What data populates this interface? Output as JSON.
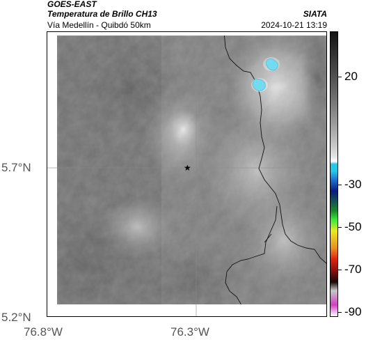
{
  "header": {
    "source": "GOES-EAST",
    "product": "Temperatura de Brillo CH13",
    "brand": "SIATA",
    "region": "Vía Medellín - Quibdó 50km",
    "timestamp": "2024-10-21 13:19"
  },
  "axes": {
    "y_labels": [
      "5.7°N",
      "5.2°N"
    ],
    "x_labels": [
      "76.8°W",
      "76.3°W"
    ]
  },
  "colorbar": {
    "labels": [
      "20",
      "-30",
      "-50",
      "-70",
      "-90"
    ],
    "stops": [
      "#141414",
      "#3a3a3a",
      "#6a6a6a",
      "#9a9a9a",
      "#c8c8c8",
      "#e6e6e6",
      "#ffffff",
      "#27c8e6",
      "#1f6fd0",
      "#0a1a80",
      "#1a8a2a",
      "#38e838",
      "#eaea20",
      "#e89020",
      "#e02010",
      "#8a1010",
      "#1a0808",
      "#c8c8c8",
      "#d040c0",
      "#ffffff"
    ]
  },
  "map": {
    "marker": "★",
    "marker_name": "star-marker",
    "cold_cloud_color": "#1ec8e6"
  }
}
